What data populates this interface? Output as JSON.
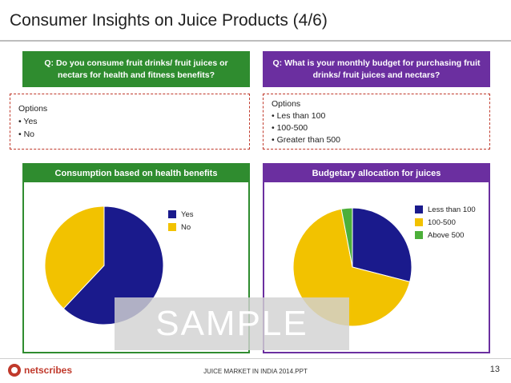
{
  "title": "Consumer Insights on Juice Products (4/6)",
  "questions": {
    "left": "Q: Do you consume fruit drinks/ fruit juices or nectars for health and fitness benefits?",
    "right": "Q: What is your monthly budget for purchasing fruit drinks/ fruit juices and nectars?"
  },
  "options": {
    "left": {
      "heading": "Options",
      "items": [
        "•   Yes",
        "•   No"
      ]
    },
    "right": {
      "heading": "Options",
      "items": [
        "• Les than 100",
        "• 100-500",
        "• Greater than 500"
      ]
    }
  },
  "colors": {
    "blue": "#1a1a8c",
    "yellow": "#f2c200",
    "green": "#4caf3a",
    "left_accent": "#2f8c2f",
    "right_accent": "#6b2fa0"
  },
  "chart_data": [
    {
      "type": "pie",
      "title": "Consumption based on health benefits",
      "categories": [
        "Yes",
        "No"
      ],
      "values": [
        62,
        38
      ],
      "colors": [
        "#1a1a8c",
        "#f2c200"
      ],
      "legend": "right"
    },
    {
      "type": "pie",
      "title": "Budgetary allocation for juices",
      "categories": [
        "Less than 100",
        "100-500",
        "Above 500"
      ],
      "values": [
        29,
        68,
        3
      ],
      "colors": [
        "#1a1a8c",
        "#f2c200",
        "#4caf3a"
      ],
      "legend": "right"
    }
  ],
  "watermark": "SAMPLE",
  "footer": {
    "logo": "netscribes",
    "text": "JUICE MARKET IN INDIA 2014.PPT",
    "page": "13"
  }
}
